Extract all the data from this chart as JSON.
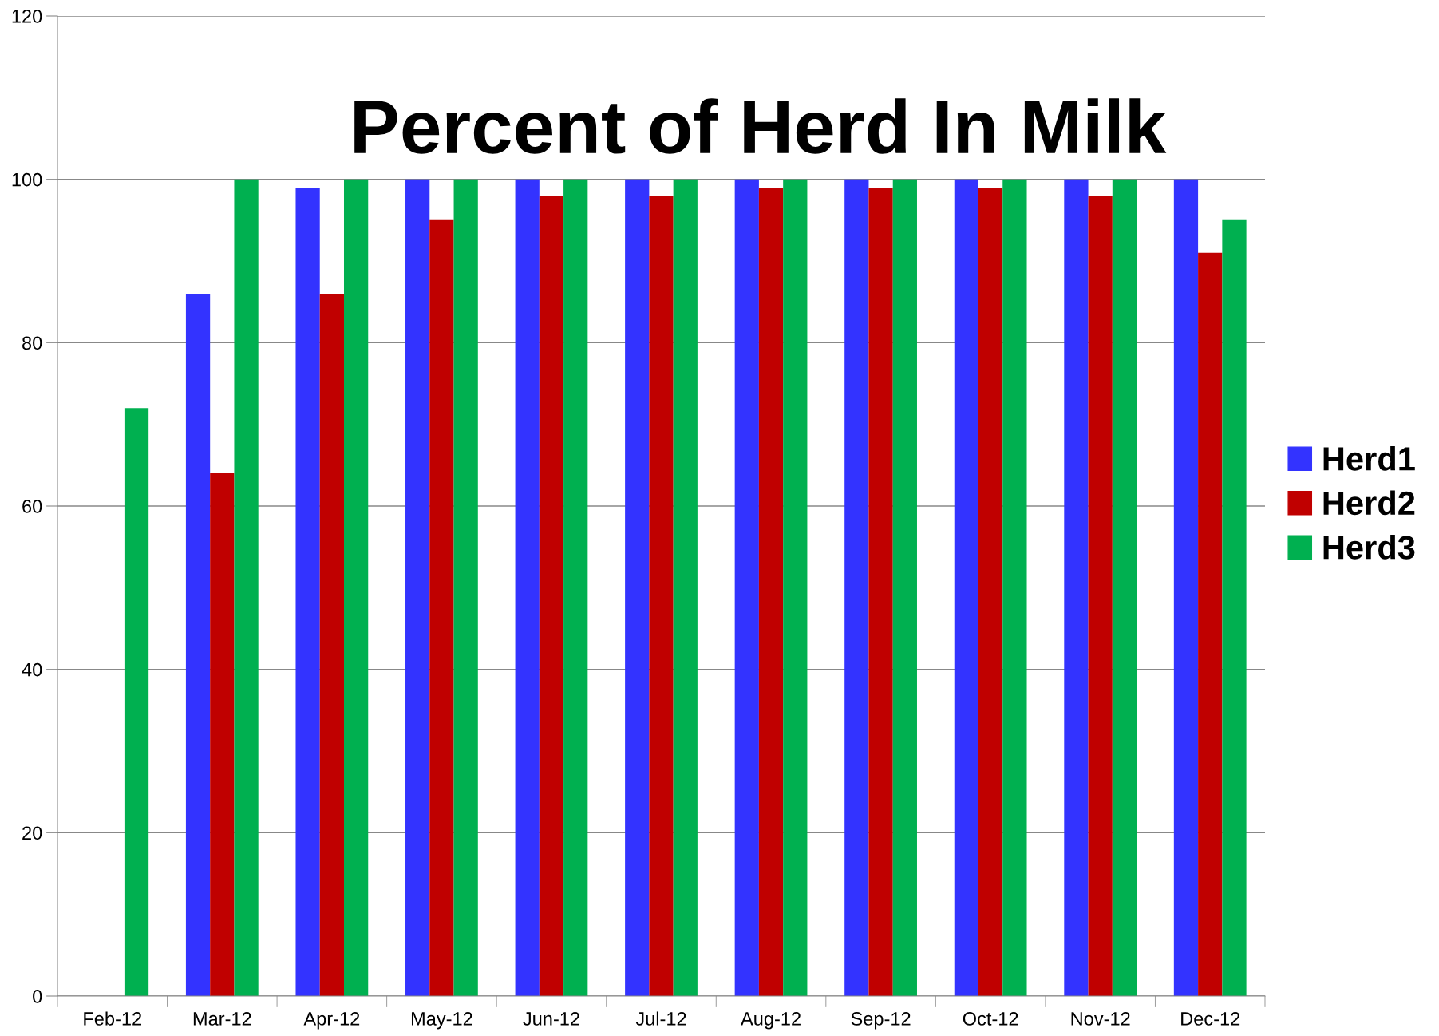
{
  "chart_data": {
    "type": "bar",
    "title": "Percent of Herd In Milk",
    "categories": [
      "Feb-12",
      "Mar-12",
      "Apr-12",
      "May-12",
      "Jun-12",
      "Jul-12",
      "Aug-12",
      "Sep-12",
      "Oct-12",
      "Nov-12",
      "Dec-12"
    ],
    "series": [
      {
        "name": "Herd1",
        "color": "#3333ff",
        "values": [
          null,
          86,
          99,
          100,
          100,
          100,
          100,
          100,
          100,
          100,
          100
        ]
      },
      {
        "name": "Herd2",
        "color": "#c00000",
        "values": [
          null,
          64,
          86,
          95,
          98,
          98,
          99,
          99,
          99,
          98,
          91
        ]
      },
      {
        "name": "Herd3",
        "color": "#00b050",
        "values": [
          72,
          100,
          100,
          100,
          100,
          100,
          100,
          100,
          100,
          100,
          95
        ]
      }
    ],
    "ylim": [
      0,
      120
    ],
    "yticks": [
      0,
      20,
      40,
      60,
      80,
      100,
      120
    ],
    "grid": "y",
    "legend": "right"
  }
}
